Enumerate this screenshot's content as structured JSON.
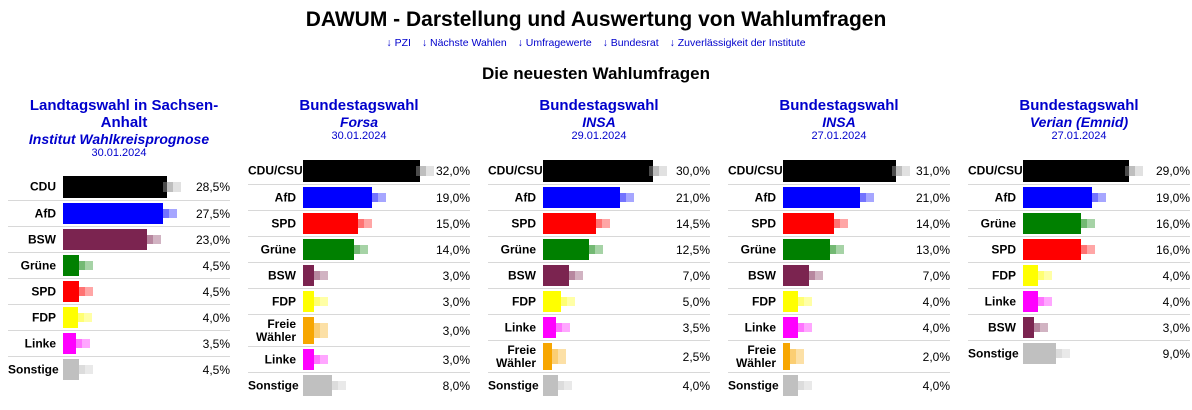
{
  "title": "DAWUM - Darstellung und Auswertung von Wahlumfragen",
  "nav": [
    "↓ PZI",
    "↓ Nächste Wahlen",
    "↓ Umfragewerte",
    "↓ Bundesrat",
    "↓ Zuverlässigkeit der Institute"
  ],
  "section_title": "Die neuesten Wahlumfragen",
  "polls": [
    {
      "election": "Landtagswahl in Sachsen-Anhalt",
      "institute": "Institut Wahlkreisprognose",
      "date": "30.01.2024",
      "results": [
        {
          "party": "CDU",
          "value": 28.5,
          "label": "28,5%",
          "color": "#000000"
        },
        {
          "party": "AfD",
          "value": 27.5,
          "label": "27,5%",
          "color": "#0000ff"
        },
        {
          "party": "BSW",
          "value": 23.0,
          "label": "23,0%",
          "color": "#7b2450"
        },
        {
          "party": "Grüne",
          "value": 4.5,
          "label": "4,5%",
          "color": "#008000"
        },
        {
          "party": "SPD",
          "value": 4.5,
          "label": "4,5%",
          "color": "#ff0000"
        },
        {
          "party": "FDP",
          "value": 4.0,
          "label": "4,0%",
          "color": "#ffff00"
        },
        {
          "party": "Linke",
          "value": 3.5,
          "label": "3,5%",
          "color": "#ff00ff"
        },
        {
          "party": "Sonstige",
          "value": 4.5,
          "label": "4,5%",
          "color": "#c0c0c0"
        }
      ]
    },
    {
      "election": "Bundestagswahl",
      "institute": "Forsa",
      "date": "30.01.2024",
      "results": [
        {
          "party": "CDU/CSU",
          "value": 32.0,
          "label": "32,0%",
          "color": "#000000"
        },
        {
          "party": "AfD",
          "value": 19.0,
          "label": "19,0%",
          "color": "#0000ff"
        },
        {
          "party": "SPD",
          "value": 15.0,
          "label": "15,0%",
          "color": "#ff0000"
        },
        {
          "party": "Grüne",
          "value": 14.0,
          "label": "14,0%",
          "color": "#008000"
        },
        {
          "party": "BSW",
          "value": 3.0,
          "label": "3,0%",
          "color": "#7b2450"
        },
        {
          "party": "FDP",
          "value": 3.0,
          "label": "3,0%",
          "color": "#ffff00"
        },
        {
          "party": "Freie Wähler",
          "value": 3.0,
          "label": "3,0%",
          "color": "#f7a600"
        },
        {
          "party": "Linke",
          "value": 3.0,
          "label": "3,0%",
          "color": "#ff00ff"
        },
        {
          "party": "Sonstige",
          "value": 8.0,
          "label": "8,0%",
          "color": "#c0c0c0"
        }
      ]
    },
    {
      "election": "Bundestagswahl",
      "institute": "INSA",
      "date": "29.01.2024",
      "results": [
        {
          "party": "CDU/CSU",
          "value": 30.0,
          "label": "30,0%",
          "color": "#000000"
        },
        {
          "party": "AfD",
          "value": 21.0,
          "label": "21,0%",
          "color": "#0000ff"
        },
        {
          "party": "SPD",
          "value": 14.5,
          "label": "14,5%",
          "color": "#ff0000"
        },
        {
          "party": "Grüne",
          "value": 12.5,
          "label": "12,5%",
          "color": "#008000"
        },
        {
          "party": "BSW",
          "value": 7.0,
          "label": "7,0%",
          "color": "#7b2450"
        },
        {
          "party": "FDP",
          "value": 5.0,
          "label": "5,0%",
          "color": "#ffff00"
        },
        {
          "party": "Linke",
          "value": 3.5,
          "label": "3,5%",
          "color": "#ff00ff"
        },
        {
          "party": "Freie Wähler",
          "value": 2.5,
          "label": "2,5%",
          "color": "#f7a600"
        },
        {
          "party": "Sonstige",
          "value": 4.0,
          "label": "4,0%",
          "color": "#c0c0c0"
        }
      ]
    },
    {
      "election": "Bundestagswahl",
      "institute": "INSA",
      "date": "27.01.2024",
      "results": [
        {
          "party": "CDU/CSU",
          "value": 31.0,
          "label": "31,0%",
          "color": "#000000"
        },
        {
          "party": "AfD",
          "value": 21.0,
          "label": "21,0%",
          "color": "#0000ff"
        },
        {
          "party": "SPD",
          "value": 14.0,
          "label": "14,0%",
          "color": "#ff0000"
        },
        {
          "party": "Grüne",
          "value": 13.0,
          "label": "13,0%",
          "color": "#008000"
        },
        {
          "party": "BSW",
          "value": 7.0,
          "label": "7,0%",
          "color": "#7b2450"
        },
        {
          "party": "FDP",
          "value": 4.0,
          "label": "4,0%",
          "color": "#ffff00"
        },
        {
          "party": "Linke",
          "value": 4.0,
          "label": "4,0%",
          "color": "#ff00ff"
        },
        {
          "party": "Freie Wähler",
          "value": 2.0,
          "label": "2,0%",
          "color": "#f7a600"
        },
        {
          "party": "Sonstige",
          "value": 4.0,
          "label": "4,0%",
          "color": "#c0c0c0"
        }
      ]
    },
    {
      "election": "Bundestagswahl",
      "institute": "Verian (Emnid)",
      "date": "27.01.2024",
      "results": [
        {
          "party": "CDU/CSU",
          "value": 29.0,
          "label": "29,0%",
          "color": "#000000"
        },
        {
          "party": "AfD",
          "value": 19.0,
          "label": "19,0%",
          "color": "#0000ff"
        },
        {
          "party": "Grüne",
          "value": 16.0,
          "label": "16,0%",
          "color": "#008000"
        },
        {
          "party": "SPD",
          "value": 16.0,
          "label": "16,0%",
          "color": "#ff0000"
        },
        {
          "party": "FDP",
          "value": 4.0,
          "label": "4,0%",
          "color": "#ffff00"
        },
        {
          "party": "Linke",
          "value": 4.0,
          "label": "4,0%",
          "color": "#ff00ff"
        },
        {
          "party": "BSW",
          "value": 3.0,
          "label": "3,0%",
          "color": "#7b2450"
        },
        {
          "party": "Sonstige",
          "value": 9.0,
          "label": "9,0%",
          "color": "#c0c0c0"
        }
      ]
    }
  ]
}
